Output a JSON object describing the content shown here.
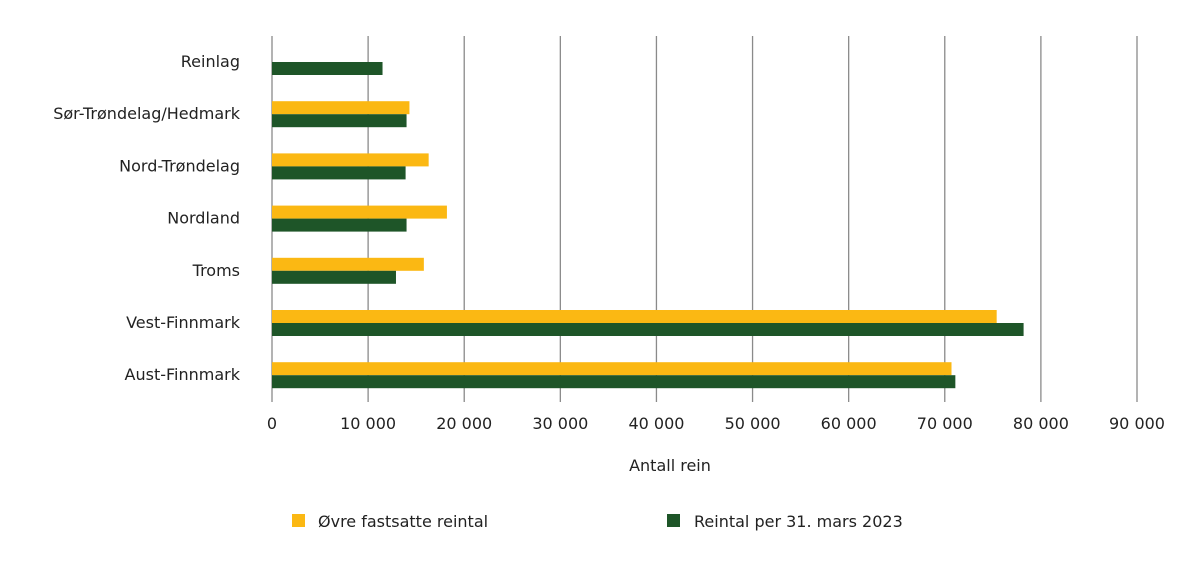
{
  "chart_data": {
    "type": "bar",
    "orientation": "horizontal",
    "categories": [
      "Reinlag",
      "Sør-Trøndelag/Hedmark",
      "Nord-Trøndelag",
      "Nordland",
      "Troms",
      "Vest-Finnmark",
      "Aust-Finnmark"
    ],
    "series": [
      {
        "name": "Øvre fastsatte reintal",
        "color": "#FBB813",
        "values": [
          null,
          14300,
          16300,
          18200,
          15800,
          75400,
          70700
        ]
      },
      {
        "name": "Reintal per 31. mars 2023",
        "color": "#1E5528",
        "values": [
          11500,
          14000,
          13900,
          14000,
          12900,
          78200,
          71100
        ]
      }
    ],
    "xlabel": "Antall rein",
    "ylabel": "",
    "xlim": [
      0,
      90000
    ],
    "xticks": [
      0,
      10000,
      20000,
      30000,
      40000,
      50000,
      60000,
      70000,
      80000,
      90000
    ],
    "xtick_labels": [
      "0",
      "10 000",
      "20 000",
      "30 000",
      "40 000",
      "50 000",
      "60 000",
      "70 000",
      "80 000",
      "90 000"
    ],
    "grid": "vertical",
    "legend": "bottom"
  }
}
